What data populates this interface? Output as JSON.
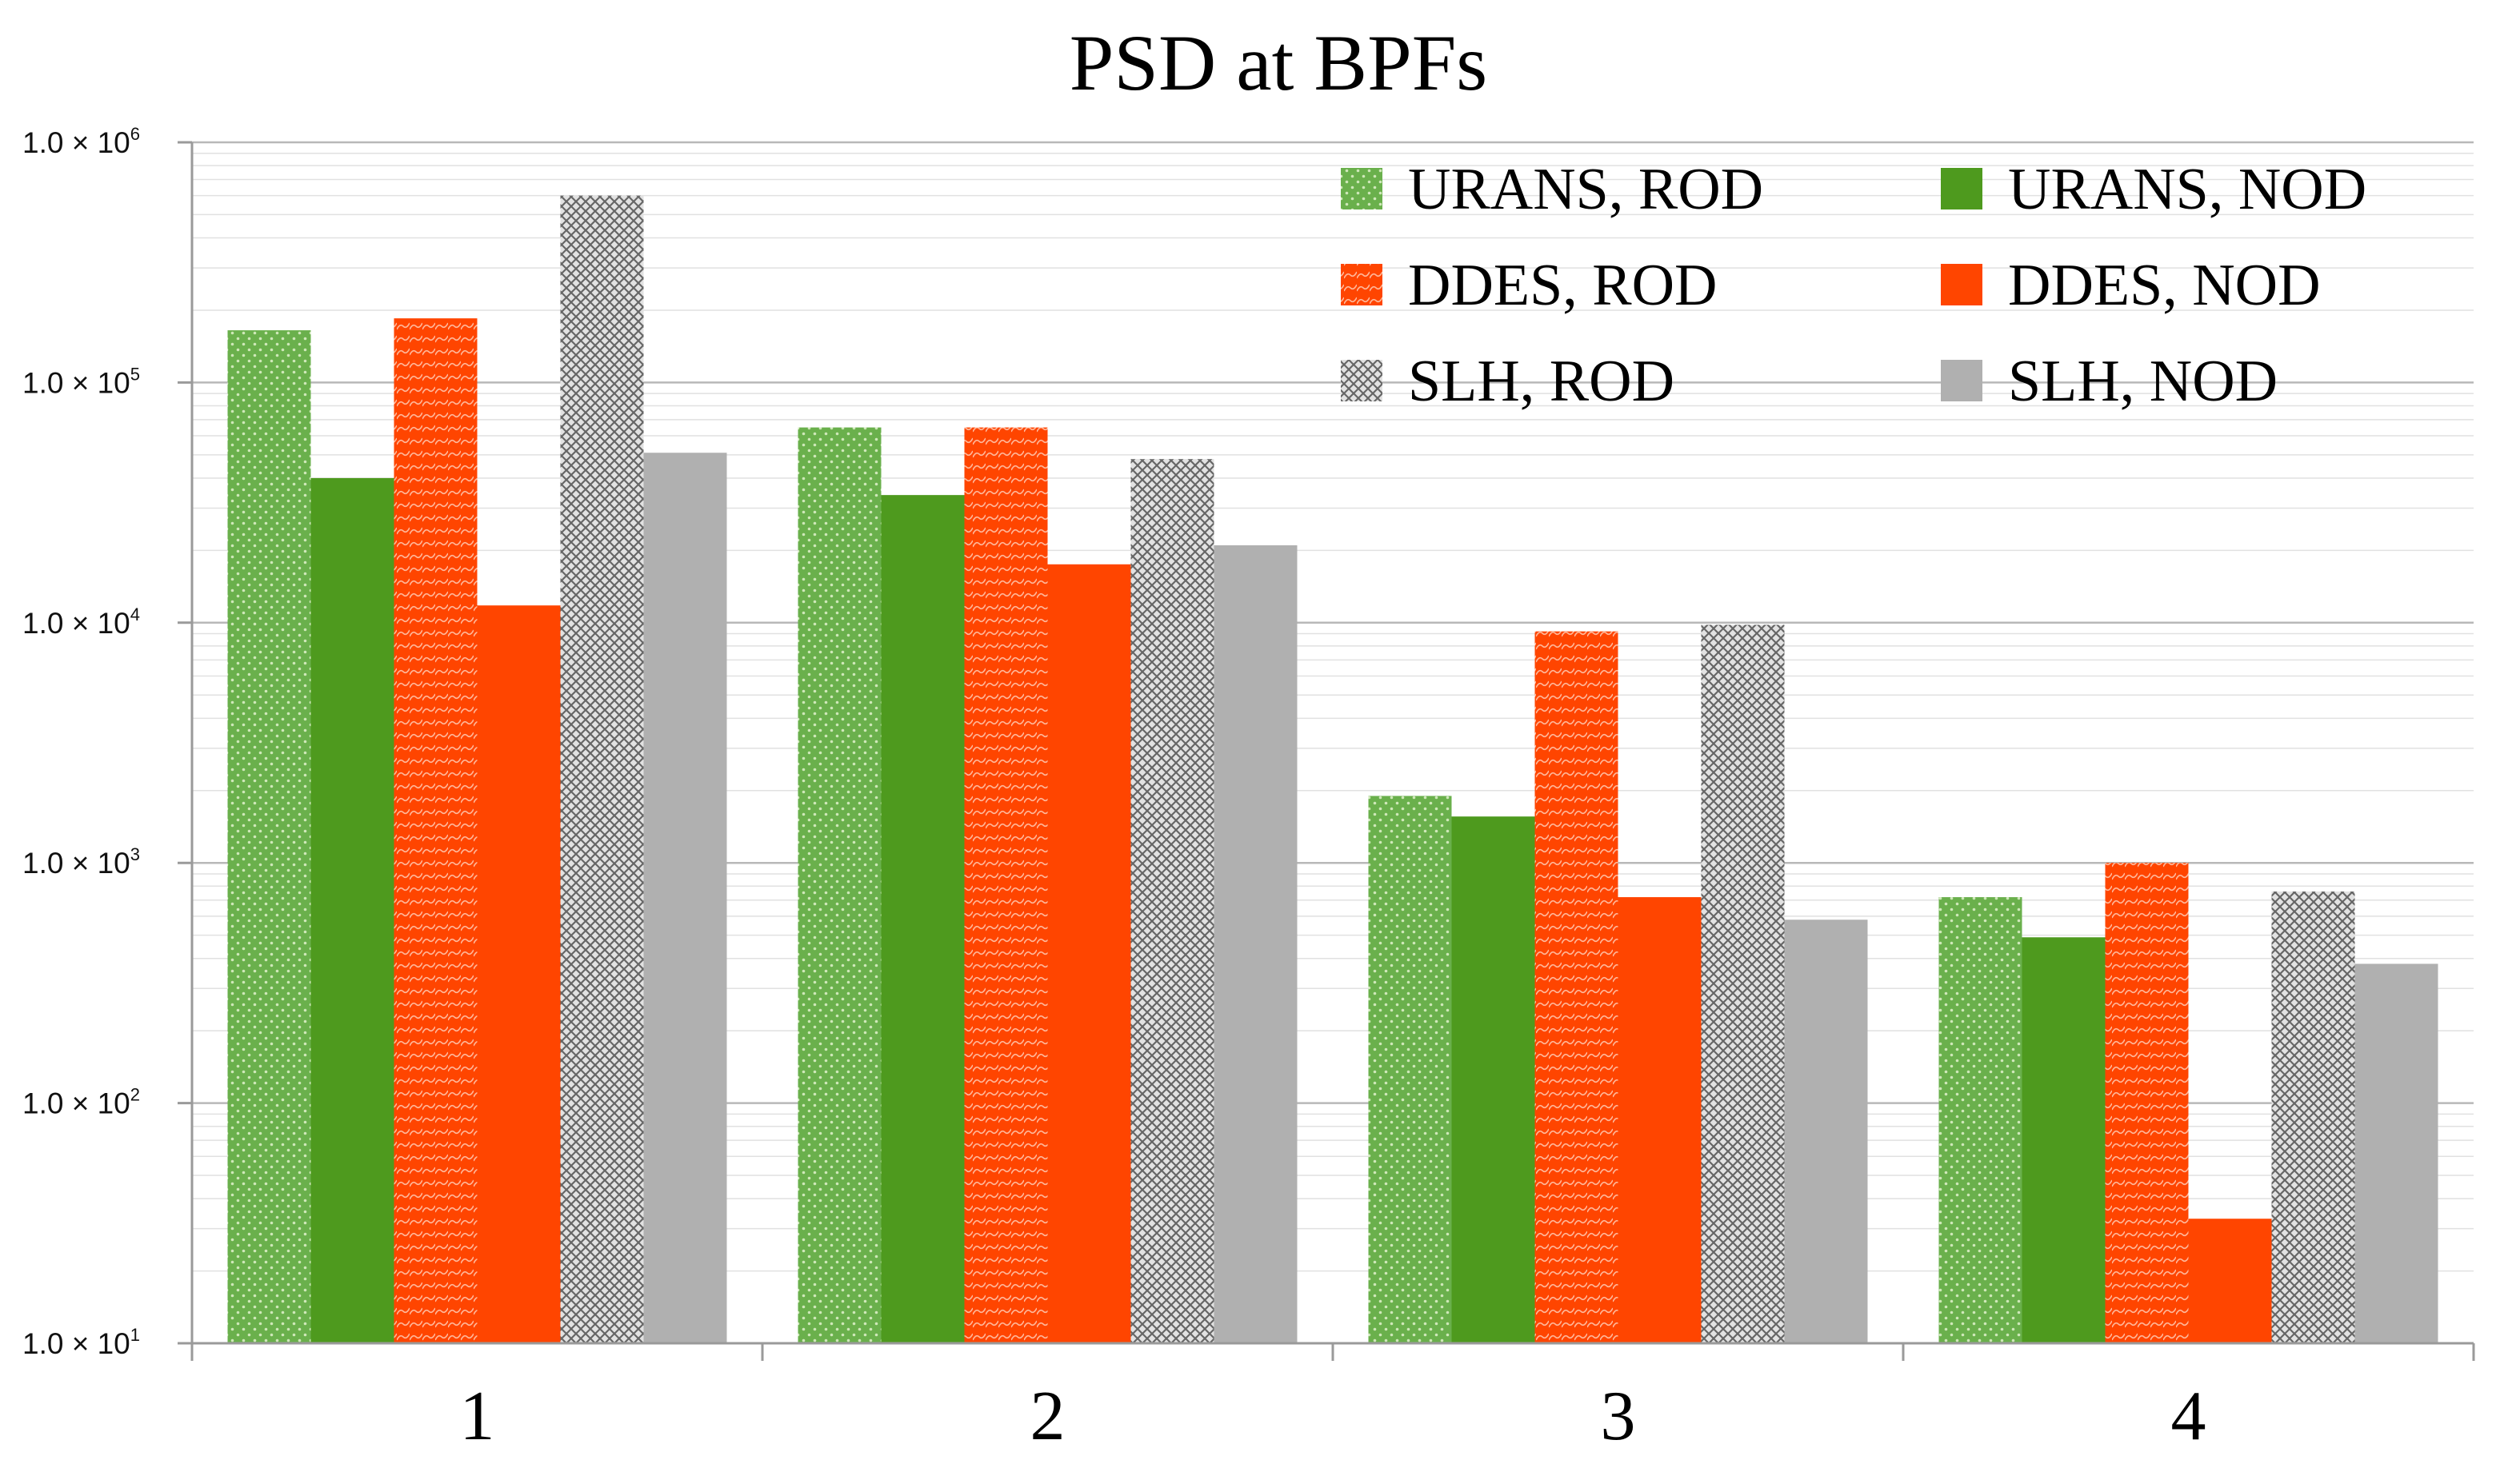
{
  "chart_data": {
    "type": "bar",
    "title": "PSD at BPFs",
    "xlabel": "",
    "ylabel": "",
    "yscale": "log",
    "ylim": [
      10,
      1000000
    ],
    "grid": true,
    "legend_position": "top-right",
    "categories": [
      "1",
      "2",
      "3",
      "4"
    ],
    "y_ticks": [
      {
        "value": 10,
        "mantissa": "1.0 × 10",
        "exponent": "1"
      },
      {
        "value": 100,
        "mantissa": "1.0 × 10",
        "exponent": "2"
      },
      {
        "value": 1000,
        "mantissa": "1.0 × 10",
        "exponent": "3"
      },
      {
        "value": 10000,
        "mantissa": "1.0 × 10",
        "exponent": "4"
      },
      {
        "value": 100000,
        "mantissa": "1.0 × 10",
        "exponent": "5"
      },
      {
        "value": 1000000,
        "mantissa": "1.0 × 10",
        "exponent": "6"
      }
    ],
    "series": [
      {
        "name": "URANS, ROD",
        "color": "#6ab04c",
        "pattern": "light-dots",
        "values": [
          165000,
          65000,
          1900,
          720
        ]
      },
      {
        "name": "URANS, NOD",
        "color": "#4e9a1e",
        "pattern": "solid",
        "values": [
          40000,
          34000,
          1560,
          490
        ]
      },
      {
        "name": "DDES, ROD",
        "color": "#ff4500",
        "pattern": "light-waves",
        "values": [
          185000,
          65000,
          9200,
          1000
        ]
      },
      {
        "name": "DDES, NOD",
        "color": "#ff4500",
        "pattern": "solid",
        "values": [
          11800,
          17500,
          720,
          33
        ]
      },
      {
        "name": "SLH, ROD",
        "color": "#888888",
        "pattern": "dark-checks",
        "values": [
          600000,
          48000,
          9800,
          760
        ]
      },
      {
        "name": "SLH, NOD",
        "color": "#b0b0b0",
        "pattern": "solid",
        "values": [
          51000,
          21000,
          580,
          380
        ]
      }
    ]
  }
}
